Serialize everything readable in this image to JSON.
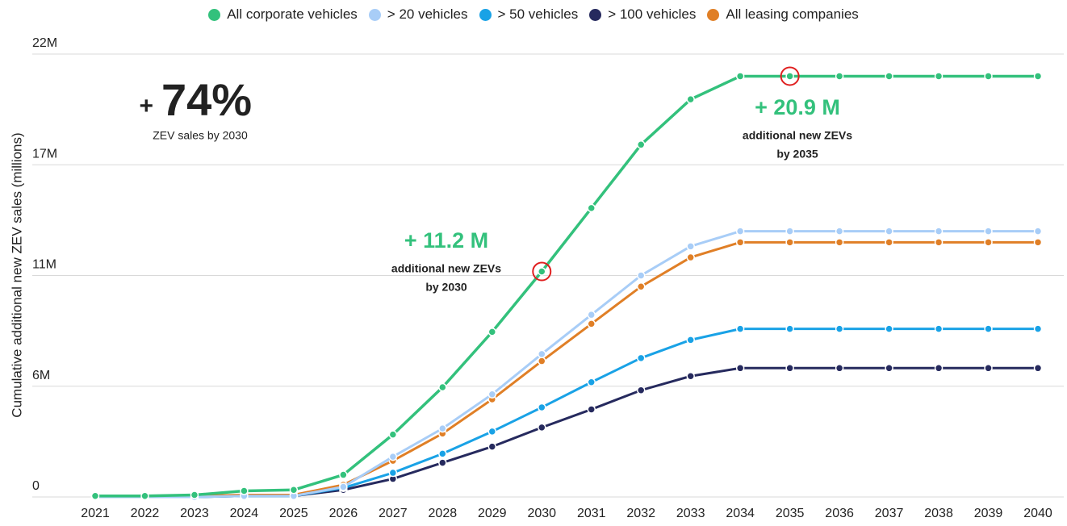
{
  "chart_data": {
    "type": "line",
    "y_label": "Cumulative additional new ZEV sales (millions)",
    "categories": [
      "2021",
      "2022",
      "2023",
      "2024",
      "2025",
      "2026",
      "2027",
      "2028",
      "2029",
      "2030",
      "2031",
      "2032",
      "2033",
      "2034",
      "2035",
      "2036",
      "2037",
      "2038",
      "2039",
      "2040"
    ],
    "ylim": [
      0,
      22
    ],
    "yticks": [
      0,
      {
        "value": 5.5,
        "label": "6M"
      },
      {
        "value": 11,
        "label": "11M"
      },
      {
        "value": 16.5,
        "label": "17M"
      },
      {
        "value": 22,
        "label": "22M"
      }
    ],
    "grid": true,
    "series": [
      {
        "name": "All corporate vehicles",
        "color": "#33c17c",
        "values": [
          0.05,
          0.05,
          0.1,
          0.3,
          0.35,
          1.1,
          3.1,
          5.45,
          8.2,
          11.2,
          14.35,
          17.5,
          19.75,
          20.9,
          20.9,
          20.9,
          20.9,
          20.9,
          20.9,
          20.9
        ]
      },
      {
        "name": "> 20 vehicles",
        "color": "#a8cdf7",
        "values": [
          0,
          0,
          0,
          0.05,
          0.05,
          0.5,
          2.0,
          3.4,
          5.1,
          7.1,
          9.05,
          11.0,
          12.45,
          13.2,
          13.2,
          13.2,
          13.2,
          13.2,
          13.2,
          13.2
        ]
      },
      {
        "name": "> 50 vehicles",
        "color": "#19a2e6",
        "values": [
          0,
          0,
          0,
          0.05,
          0.05,
          0.45,
          1.2,
          2.15,
          3.25,
          4.45,
          5.7,
          6.9,
          7.8,
          8.35,
          8.35,
          8.35,
          8.35,
          8.35,
          8.35,
          8.35
        ]
      },
      {
        "name": "> 100 vehicles",
        "color": "#262a5e",
        "values": [
          0,
          0,
          0,
          0.05,
          0.05,
          0.35,
          0.9,
          1.7,
          2.5,
          3.45,
          4.35,
          5.3,
          6.0,
          6.4,
          6.4,
          6.4,
          6.4,
          6.4,
          6.4,
          6.4
        ]
      },
      {
        "name": "All leasing companies",
        "color": "#e07f26",
        "values": [
          0.05,
          0.05,
          0.05,
          0.1,
          0.1,
          0.6,
          1.8,
          3.15,
          4.85,
          6.75,
          8.6,
          10.45,
          11.9,
          12.65,
          12.65,
          12.65,
          12.65,
          12.65,
          12.65,
          12.65
        ]
      }
    ],
    "big_stat": {
      "sign": "+",
      "text": "74%",
      "caption": "ZEV sales by 2030"
    },
    "annotations": [
      {
        "headline": "+ 11.2 M",
        "line1": "additional new ZEVs",
        "line2": "by 2030"
      },
      {
        "headline": "+ 20.9 M",
        "line1": "additional new ZEVs",
        "line2": "by 2035"
      }
    ]
  }
}
